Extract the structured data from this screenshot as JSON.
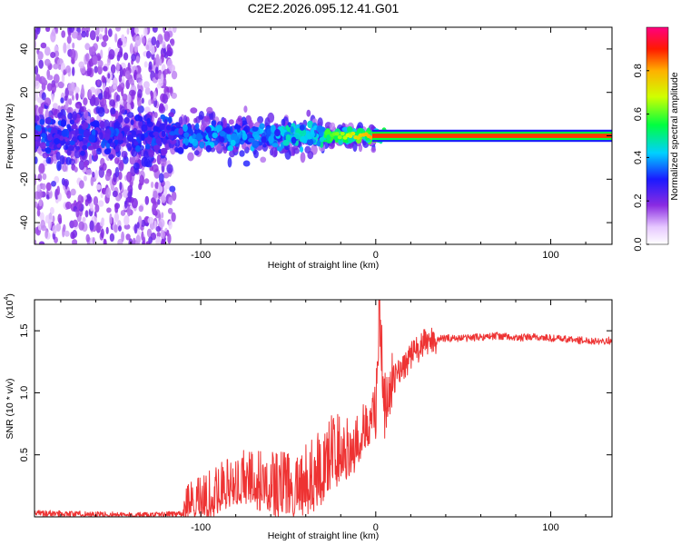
{
  "title": "C2E2.2026.095.12.41.G01",
  "chart_data": [
    {
      "type": "heatmap",
      "xlabel": "Height of straight line (km)",
      "ylabel": "Frequency (Hz)",
      "xlim": [
        -195,
        135
      ],
      "ylim": [
        -50,
        50
      ],
      "xticks": [
        -100,
        0,
        100
      ],
      "xtick_labels": [
        "-100",
        "0",
        "100"
      ],
      "yticks": [
        -40,
        -20,
        0,
        20,
        40
      ],
      "ytick_labels": [
        "-40",
        "-20",
        "0",
        "20",
        "40"
      ],
      "colorbar": {
        "label": "Normalized spectral amplitude",
        "range": [
          0,
          1
        ],
        "ticks": [
          0.0,
          0.2,
          0.4,
          0.6,
          0.8
        ],
        "tick_labels": [
          "0.0",
          "0.2",
          "0.4",
          "0.6",
          "0.8"
        ],
        "colormap": "rainbow (white-violet-blue-cyan-green-yellow-red-magenta)"
      },
      "description_points": [
        {
          "x": -190,
          "f": 0,
          "amp": 0.25
        },
        {
          "x": -150,
          "f": 0,
          "amp": 0.3
        },
        {
          "x": -100,
          "f": 0,
          "amp": 0.35
        },
        {
          "x": -60,
          "f": 0,
          "amp": 0.45
        },
        {
          "x": -30,
          "f": 0,
          "amp": 0.55
        },
        {
          "x": -10,
          "f": 0,
          "amp": 0.8
        },
        {
          "x": 0,
          "f": 0,
          "amp": 0.9
        },
        {
          "x": 50,
          "f": 0,
          "amp": 0.95
        },
        {
          "x": 130,
          "f": 0,
          "amp": 0.95
        }
      ]
    },
    {
      "type": "line",
      "xlabel": "Height of straight line (km)",
      "ylabel": "SNR (10 * v/v)",
      "scale_label": "(x10",
      "scale_exponent": "4",
      "xlim": [
        -195,
        135
      ],
      "ylim": [
        0,
        1.75
      ],
      "xticks": [
        -100,
        0,
        100
      ],
      "xtick_labels": [
        "-100",
        "0",
        "100"
      ],
      "yticks": [
        0.5,
        1.0,
        1.5
      ],
      "ytick_labels": [
        "0.5",
        "1.0",
        "1.5"
      ],
      "series": [
        {
          "name": "SNR",
          "color": "#ee3333",
          "x": [
            -195,
            -160,
            -130,
            -110,
            -100,
            -90,
            -80,
            -70,
            -60,
            -50,
            -40,
            -30,
            -25,
            -20,
            -15,
            -10,
            -5,
            0,
            2,
            5,
            10,
            20,
            30,
            40,
            50,
            60,
            70,
            80,
            90,
            100,
            110,
            120,
            135
          ],
          "y": [
            0.03,
            0.02,
            0.01,
            0.03,
            0.08,
            0.15,
            0.25,
            0.22,
            0.18,
            0.17,
            0.2,
            0.3,
            0.4,
            0.5,
            0.45,
            0.6,
            0.62,
            0.75,
            1.6,
            0.8,
            1.1,
            1.3,
            1.42,
            1.44,
            1.44,
            1.45,
            1.46,
            1.44,
            1.45,
            1.44,
            1.43,
            1.42,
            1.42
          ]
        }
      ]
    }
  ]
}
